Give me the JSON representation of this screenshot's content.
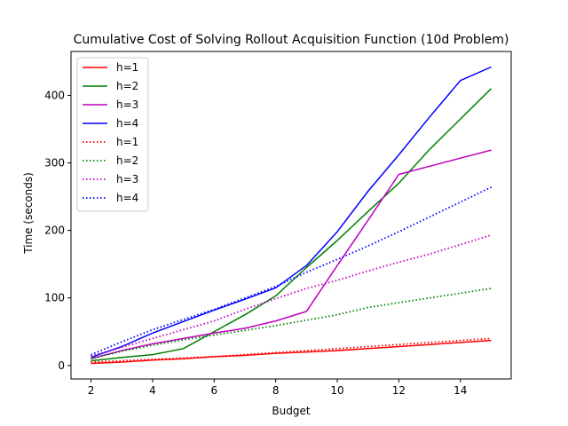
{
  "chart_data": {
    "type": "line",
    "title": "Cumulative Cost of Solving Rollout Acquisition Function (10d Problem)",
    "xlabel": "Budget",
    "ylabel": "Time (seconds)",
    "xlim": [
      1.35,
      15.65
    ],
    "ylim": [
      -20,
      465
    ],
    "xticks": [
      2,
      4,
      6,
      8,
      10,
      12,
      14
    ],
    "yticks": [
      0,
      100,
      200,
      300,
      400
    ],
    "grid": false,
    "legend_position": "upper-left",
    "series": [
      {
        "name": "h=1",
        "color": "#ff0000",
        "style": "solid",
        "x": [
          2,
          3,
          4,
          5,
          6,
          7,
          8,
          9,
          10,
          11,
          12,
          13,
          14,
          15
        ],
        "y": [
          3,
          5,
          8,
          10,
          13,
          15,
          18,
          20,
          22,
          25,
          28,
          31,
          34,
          37
        ]
      },
      {
        "name": "h=2",
        "color": "#008000",
        "style": "solid",
        "x": [
          2,
          3,
          4,
          5,
          6,
          7,
          8,
          9,
          10,
          11,
          12,
          13,
          14,
          15
        ],
        "y": [
          7,
          12,
          16,
          25,
          50,
          75,
          103,
          145,
          185,
          228,
          270,
          320,
          365,
          410
        ]
      },
      {
        "name": "h=3",
        "color": "#bf00bf",
        "style": "solid",
        "x": [
          2,
          3,
          4,
          5,
          6,
          7,
          8,
          9,
          10,
          11,
          12,
          13,
          14,
          15
        ],
        "y": [
          10,
          22,
          32,
          40,
          48,
          55,
          66,
          80,
          148,
          215,
          283,
          295,
          307,
          319
        ]
      },
      {
        "name": "h=4",
        "color": "#0000ff",
        "style": "solid",
        "x": [
          2,
          3,
          4,
          5,
          6,
          7,
          8,
          9,
          10,
          11,
          12,
          13,
          14,
          15
        ],
        "y": [
          12,
          28,
          48,
          65,
          82,
          98,
          115,
          148,
          198,
          258,
          312,
          368,
          422,
          442
        ]
      },
      {
        "name": "h=1",
        "color": "#ff0000",
        "style": "dotted",
        "x": [
          2,
          3,
          4,
          5,
          6,
          7,
          8,
          9,
          10,
          11,
          12,
          13,
          14,
          15
        ],
        "y": [
          5,
          7,
          9,
          11,
          13,
          16,
          19,
          22,
          25,
          28,
          31,
          34,
          37,
          40
        ]
      },
      {
        "name": "h=2",
        "color": "#008000",
        "style": "dotted",
        "x": [
          2,
          3,
          4,
          5,
          6,
          7,
          8,
          9,
          10,
          11,
          12,
          13,
          14,
          15
        ],
        "y": [
          10,
          21,
          30,
          38,
          45,
          52,
          59,
          67,
          75,
          86,
          93,
          100,
          107,
          114
        ]
      },
      {
        "name": "h=3",
        "color": "#bf00bf",
        "style": "dotted",
        "x": [
          2,
          3,
          4,
          5,
          6,
          7,
          8,
          9,
          10,
          11,
          12,
          13,
          14,
          15
        ],
        "y": [
          14,
          27,
          40,
          53,
          66,
          83,
          99,
          114,
          126,
          140,
          153,
          165,
          179,
          193
        ]
      },
      {
        "name": "h=4",
        "color": "#0000ff",
        "style": "dotted",
        "x": [
          2,
          3,
          4,
          5,
          6,
          7,
          8,
          9,
          10,
          11,
          12,
          13,
          14,
          15
        ],
        "y": [
          16,
          35,
          53,
          68,
          83,
          100,
          117,
          138,
          157,
          177,
          198,
          220,
          242,
          264
        ]
      }
    ]
  }
}
